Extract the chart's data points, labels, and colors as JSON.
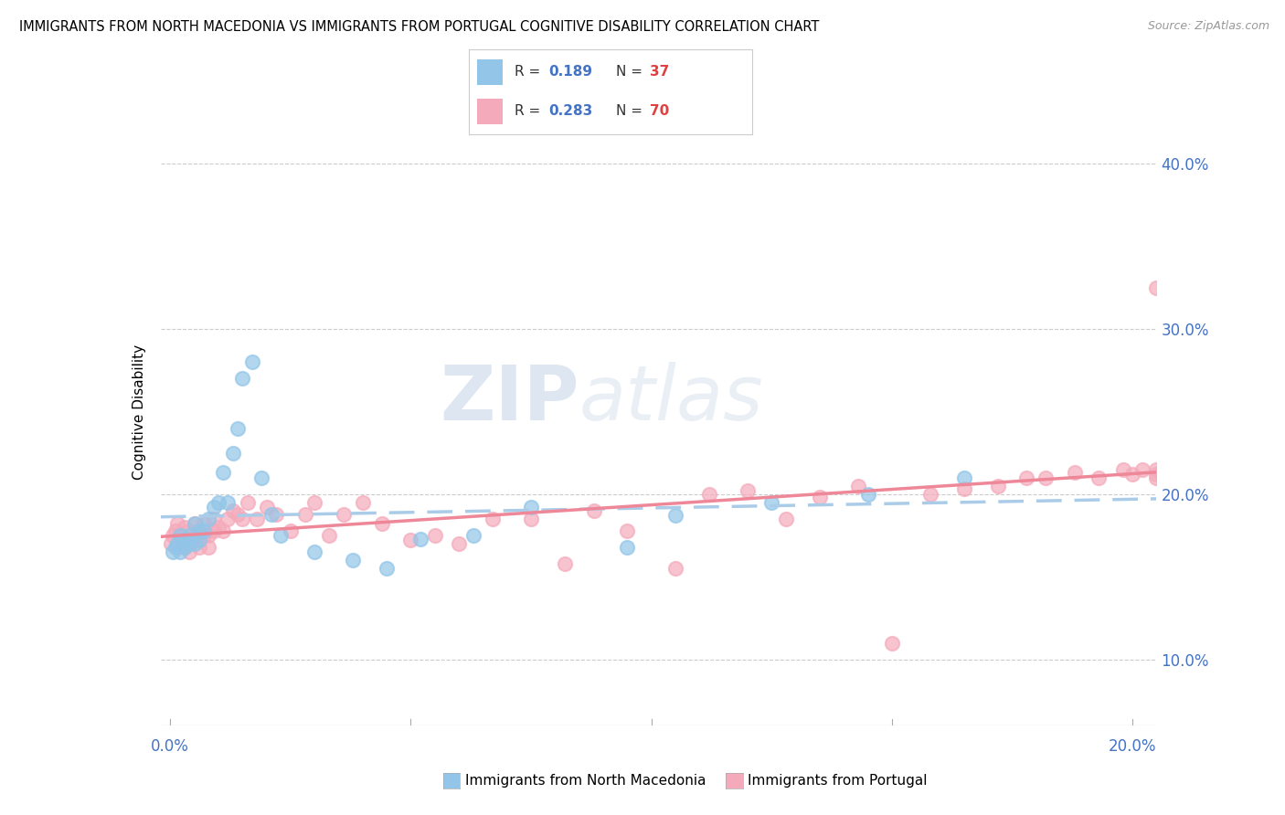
{
  "title": "IMMIGRANTS FROM NORTH MACEDONIA VS IMMIGRANTS FROM PORTUGAL COGNITIVE DISABILITY CORRELATION CHART",
  "source": "Source: ZipAtlas.com",
  "ylabel": "Cognitive Disability",
  "y_ticks": [
    0.1,
    0.2,
    0.3,
    0.4
  ],
  "y_tick_labels": [
    "10.0%",
    "20.0%",
    "30.0%",
    "40.0%"
  ],
  "xlim": [
    -0.002,
    0.205
  ],
  "ylim": [
    0.06,
    0.44
  ],
  "color_blue": "#92C5E8",
  "color_pink": "#F4AABB",
  "trendline_blue_color": "#AACCE8",
  "trendline_pink_color": "#EE8899",
  "watermark": "ZIPAtlas",
  "nm_R": "0.189",
  "nm_N": "37",
  "pt_R": "0.283",
  "pt_N": "70",
  "nm_x": [
    0.0005,
    0.001,
    0.0015,
    0.002,
    0.002,
    0.003,
    0.003,
    0.004,
    0.004,
    0.005,
    0.005,
    0.006,
    0.006,
    0.007,
    0.008,
    0.009,
    0.01,
    0.011,
    0.012,
    0.013,
    0.014,
    0.015,
    0.017,
    0.019,
    0.021,
    0.023,
    0.03,
    0.038,
    0.045,
    0.052,
    0.063,
    0.075,
    0.095,
    0.105,
    0.125,
    0.145,
    0.165
  ],
  "nm_y": [
    0.165,
    0.168,
    0.17,
    0.175,
    0.165,
    0.172,
    0.168,
    0.175,
    0.17,
    0.182,
    0.17,
    0.178,
    0.172,
    0.178,
    0.185,
    0.192,
    0.195,
    0.213,
    0.195,
    0.225,
    0.24,
    0.27,
    0.28,
    0.21,
    0.188,
    0.175,
    0.165,
    0.16,
    0.155,
    0.173,
    0.175,
    0.192,
    0.168,
    0.187,
    0.195,
    0.2,
    0.21
  ],
  "pt_x": [
    0.0002,
    0.0005,
    0.001,
    0.0015,
    0.002,
    0.0025,
    0.003,
    0.003,
    0.004,
    0.004,
    0.005,
    0.005,
    0.006,
    0.006,
    0.007,
    0.007,
    0.008,
    0.008,
    0.009,
    0.009,
    0.01,
    0.011,
    0.012,
    0.013,
    0.014,
    0.015,
    0.016,
    0.018,
    0.02,
    0.022,
    0.025,
    0.028,
    0.03,
    0.033,
    0.036,
    0.04,
    0.044,
    0.05,
    0.055,
    0.06,
    0.067,
    0.075,
    0.082,
    0.088,
    0.095,
    0.105,
    0.112,
    0.12,
    0.128,
    0.135,
    0.143,
    0.15,
    0.158,
    0.165,
    0.172,
    0.178,
    0.182,
    0.188,
    0.193,
    0.198,
    0.2,
    0.202,
    0.205,
    0.205,
    0.205,
    0.205,
    0.206,
    0.207,
    0.207,
    0.208
  ],
  "pt_y": [
    0.17,
    0.175,
    0.178,
    0.182,
    0.175,
    0.172,
    0.18,
    0.168,
    0.178,
    0.165,
    0.182,
    0.172,
    0.175,
    0.168,
    0.182,
    0.175,
    0.175,
    0.168,
    0.185,
    0.178,
    0.18,
    0.178,
    0.185,
    0.19,
    0.188,
    0.185,
    0.195,
    0.185,
    0.192,
    0.188,
    0.178,
    0.188,
    0.195,
    0.175,
    0.188,
    0.195,
    0.182,
    0.172,
    0.175,
    0.17,
    0.185,
    0.185,
    0.158,
    0.19,
    0.178,
    0.155,
    0.2,
    0.202,
    0.185,
    0.198,
    0.205,
    0.11,
    0.2,
    0.203,
    0.205,
    0.21,
    0.21,
    0.213,
    0.21,
    0.215,
    0.212,
    0.215,
    0.325,
    0.215,
    0.212,
    0.21,
    0.213,
    0.215,
    0.212,
    0.215
  ]
}
